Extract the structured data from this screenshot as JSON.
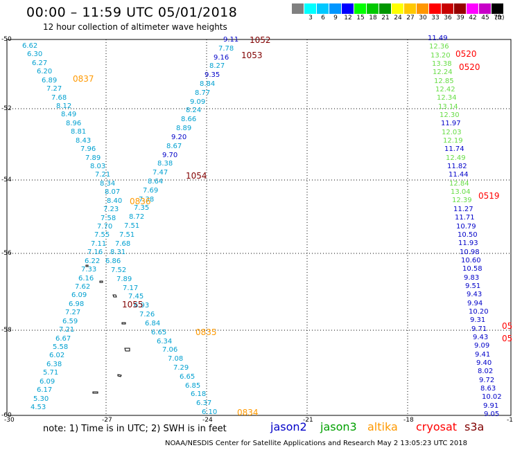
{
  "header": {
    "title": "00:00 – 11:59 UTC 05/01/2018",
    "subtitle": "12 hour collection of altimeter wave heights"
  },
  "colorbar": {
    "unit": "(ft)",
    "bins": [
      {
        "label": "",
        "color": "#808080"
      },
      {
        "label": "3",
        "color": "#00ffff"
      },
      {
        "label": "6",
        "color": "#00c8ff"
      },
      {
        "label": "9",
        "color": "#0096ff"
      },
      {
        "label": "12",
        "color": "#0000ff"
      },
      {
        "label": "15",
        "color": "#00ff00"
      },
      {
        "label": "18",
        "color": "#00c800"
      },
      {
        "label": "21",
        "color": "#009600"
      },
      {
        "label": "24",
        "color": "#ffff00"
      },
      {
        "label": "27",
        "color": "#ffc800"
      },
      {
        "label": "30",
        "color": "#ff9600"
      },
      {
        "label": "33",
        "color": "#ff0000"
      },
      {
        "label": "36",
        "color": "#c80000"
      },
      {
        "label": "39",
        "color": "#960000"
      },
      {
        "label": "42",
        "color": "#ff00ff"
      },
      {
        "label": "45",
        "color": "#c800c8"
      },
      {
        "label": "70",
        "color": "#000000"
      }
    ]
  },
  "axes": {
    "lat_labels": [
      "-50",
      "-52",
      "-54",
      "-56",
      "-58",
      "-60"
    ],
    "lon_labels": [
      "-30",
      "-27",
      "-24",
      "-21",
      "-18",
      "-15"
    ]
  },
  "satellite_colors": {
    "jason2": "#0000c8",
    "jason3": "#00a000",
    "altika": "#ff9900",
    "cryosat": "#ff0000",
    "s3a": "#800000",
    "cyan_track": "#00a0d0",
    "green_track": "#66dd44"
  },
  "passes": [
    {
      "text": "1052",
      "sat": "s3a"
    },
    {
      "text": "1053",
      "sat": "s3a"
    },
    {
      "text": "0837",
      "sat": "altika"
    },
    {
      "text": "0836",
      "sat": "altika"
    },
    {
      "text": "1054",
      "sat": "s3a"
    },
    {
      "text": "1055",
      "sat": "s3a"
    },
    {
      "text": "0835",
      "sat": "altika"
    },
    {
      "text": "0834",
      "sat": "altika"
    },
    {
      "text": "0520",
      "sat": "cryosat"
    },
    {
      "text": "0520",
      "sat": "cryosat"
    },
    {
      "text": "0519",
      "sat": "cryosat"
    },
    {
      "text": "05",
      "sat": "cryosat"
    },
    {
      "text": "05",
      "sat": "cryosat"
    }
  ],
  "tracks": {
    "west_cyan": [
      "6.62",
      "6.30",
      "6.27",
      "6.20",
      "6.89",
      "7.27",
      "7.68",
      "8.12",
      "8.49",
      "8.96",
      "8.81",
      "8.43",
      "7.96",
      "7.89",
      "8.03",
      "7.21",
      "8.34",
      "8.07",
      "8.40",
      "7.23",
      "7.58",
      "7.70",
      "7.55",
      "7.11",
      "7.16",
      "6.22",
      "7.33",
      "6.16",
      "7.62",
      "6.09",
      "6.98",
      "7.27",
      "6.59",
      "7.21",
      "6.67",
      "5.58",
      "6.02",
      "6.38",
      "5.71",
      "6.09",
      "6.17",
      "5.30",
      "4.53"
    ],
    "middle": [
      "9.11",
      "7.78",
      "9.16",
      "8.27",
      "9.35",
      "8.84",
      "8.77",
      "9.09",
      "8.24",
      "8.66",
      "8.89",
      "9.20",
      "8.67",
      "9.70",
      "8.38",
      "7.47",
      "8.64",
      "7.69",
      "7.38",
      "7.35",
      "8.72",
      "7.51",
      "7.51",
      "7.68",
      "8.31",
      "6.86",
      "7.52",
      "7.89",
      "7.17",
      "7.45",
      "6.93",
      "7.26",
      "6.84",
      "6.65",
      "6.34",
      "7.06",
      "7.08",
      "7.29",
      "6.65",
      "6.85",
      "6.18",
      "6.37",
      "6.10"
    ],
    "east": [
      "11.49",
      "12.36",
      "13.20",
      "13.38",
      "12.24",
      "12.85",
      "12.42",
      "12.34",
      "13.14",
      "12.30",
      "11.97",
      "12.03",
      "12.19",
      "11.74",
      "12.49",
      "11.82",
      "11.44",
      "12.84",
      "13.04",
      "12.39",
      "11.27",
      "11.71",
      "10.79",
      "10.50",
      "11.93",
      "10.98",
      "10.60",
      "10.58",
      "9.83",
      "9.51",
      "9.43",
      "9.94",
      "10.20",
      "9.31",
      "9.71",
      "9.43",
      "9.09",
      "9.41",
      "9.40",
      "8.02",
      "9.72",
      "8.63",
      "10.02",
      "9.91",
      "9.05"
    ]
  },
  "legend": {
    "note": "note: 1) Time is in UTC; 2) SWH is in feet",
    "jason2": "jason2",
    "jason3": "jason3",
    "altika": "altika",
    "cryosat": "cryosat",
    "s3a": "s3a"
  },
  "footer": "NOAA/NESDIS Center for Satellite Applications and Research   May  2 13:05:23 UTC 2018"
}
